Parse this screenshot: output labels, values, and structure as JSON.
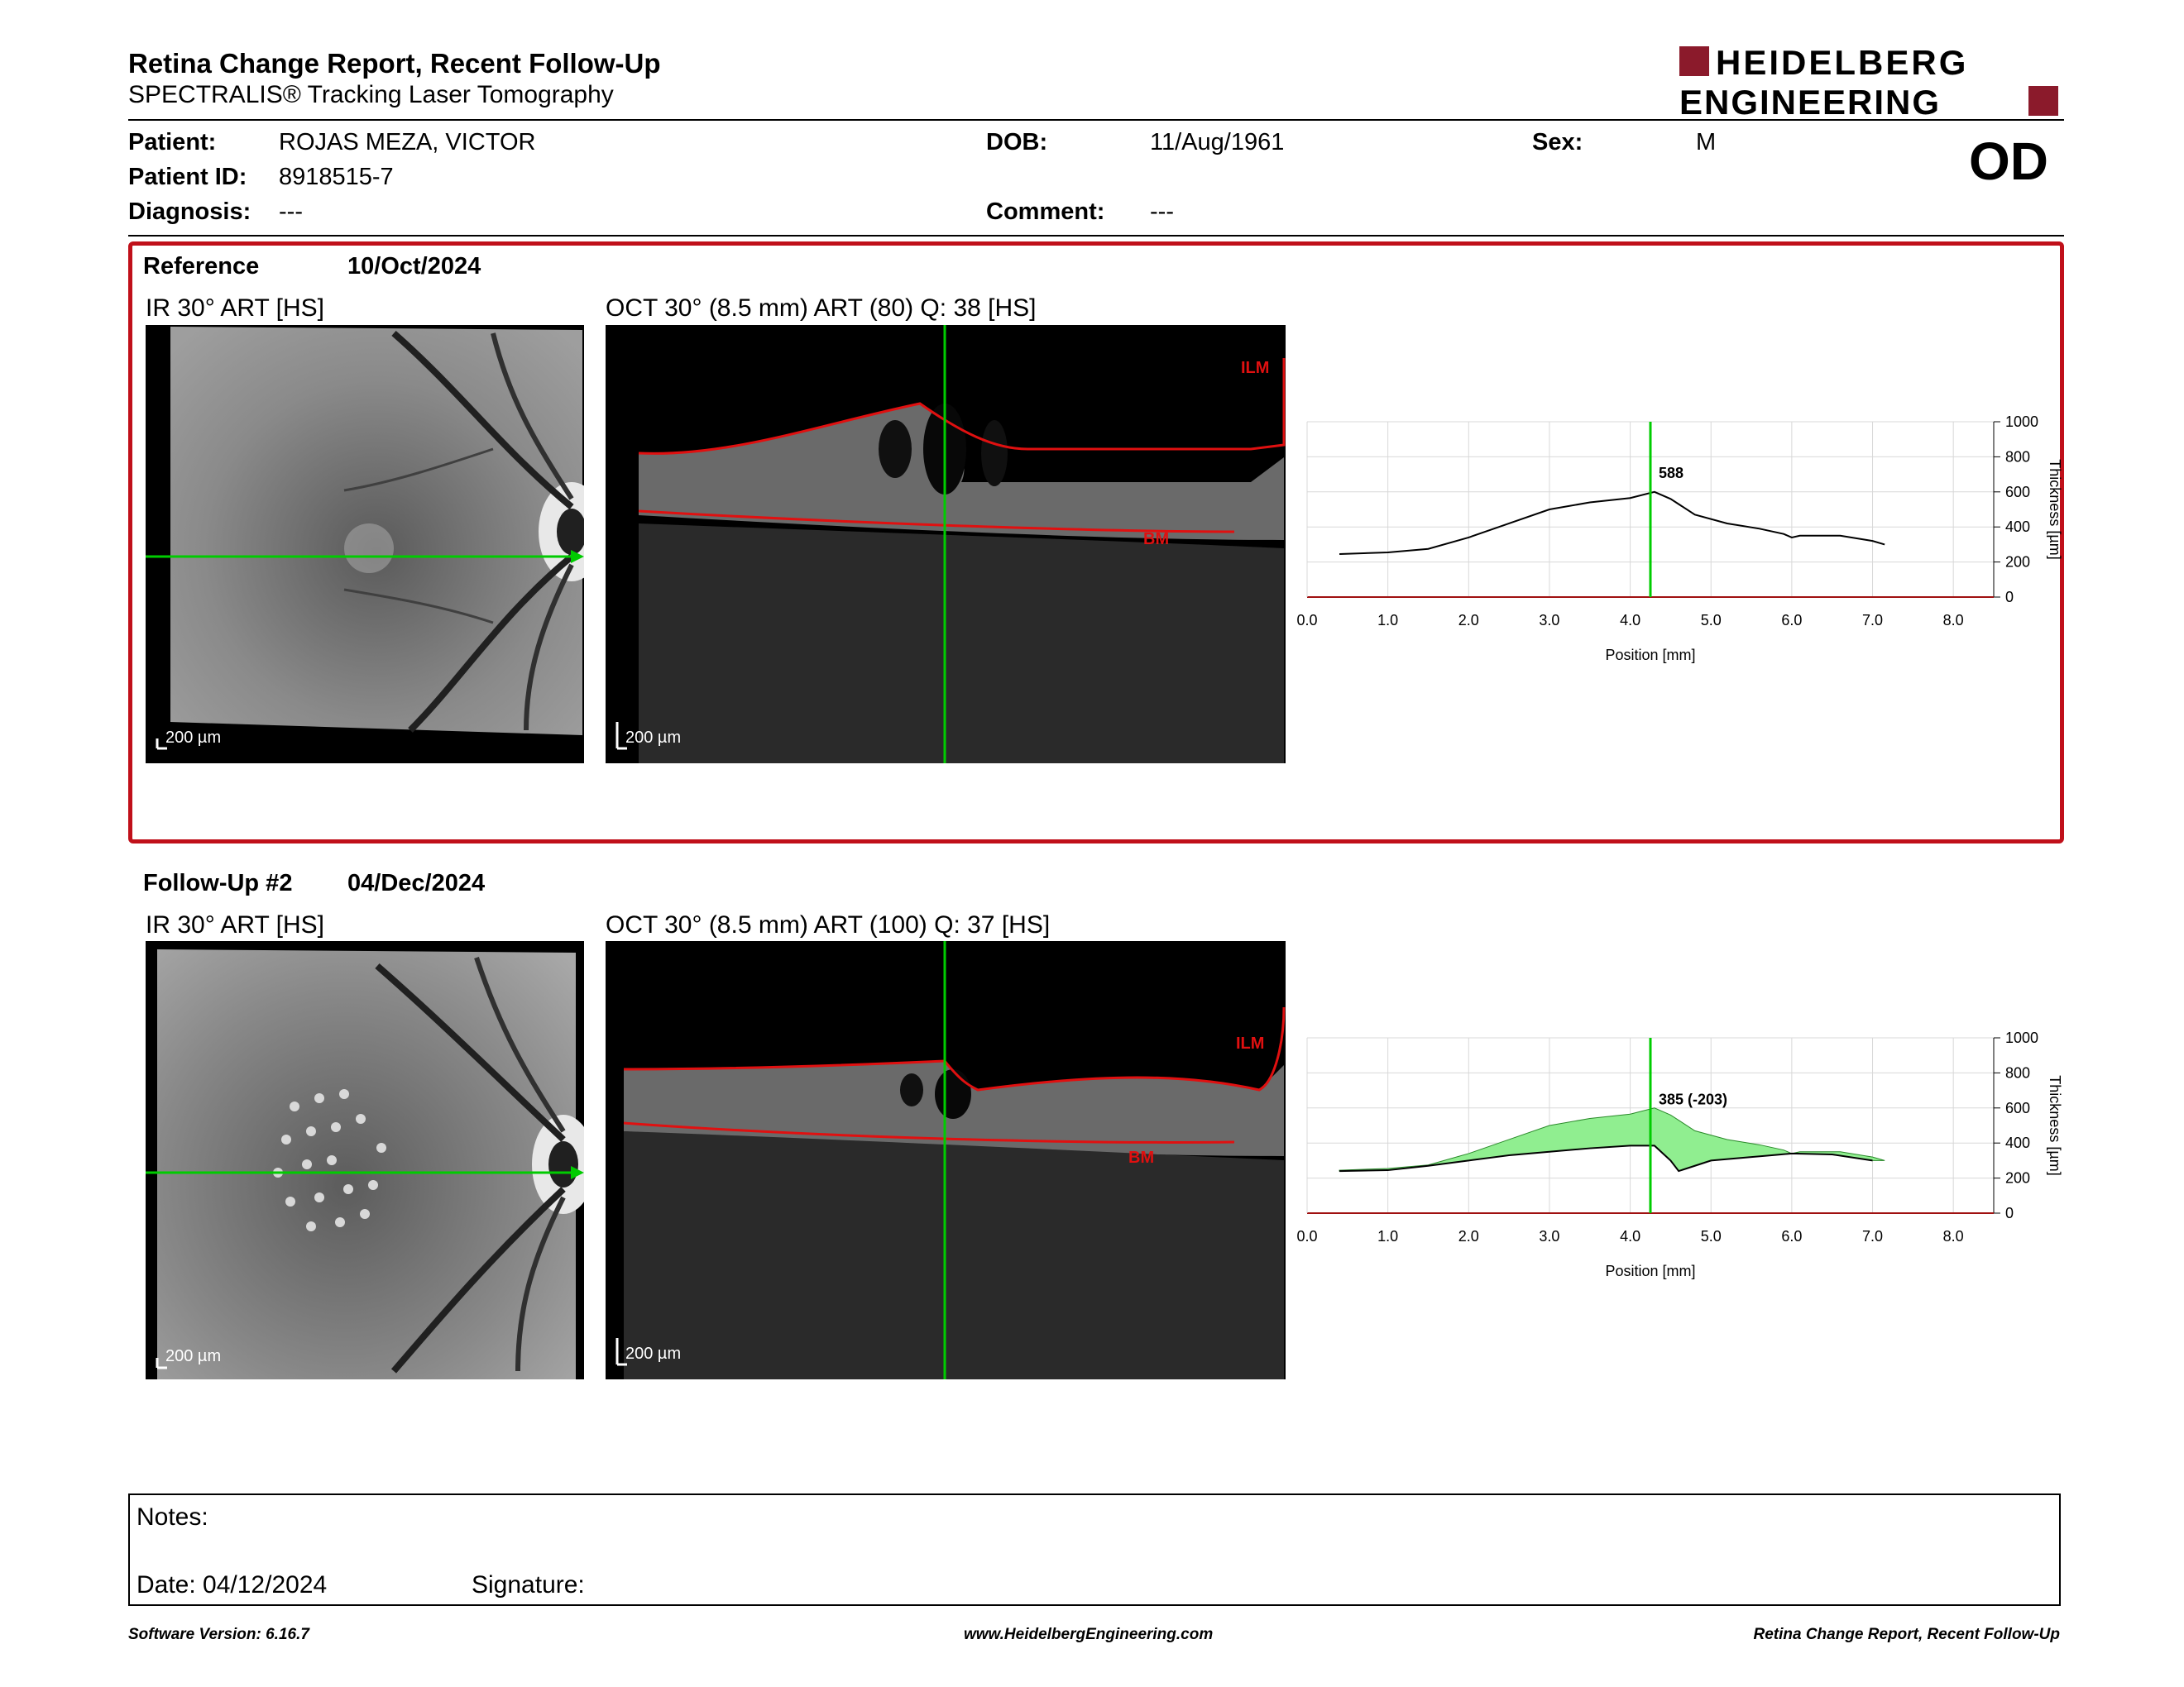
{
  "header": {
    "title": "Retina Change Report, Recent Follow-Up",
    "subtitle": "SPECTRALIS® Tracking Laser Tomography",
    "logo_line1": "HEIDELBERG",
    "logo_line2": "ENGINEERING",
    "brand_color": "#8b1a2b"
  },
  "patient": {
    "patient_label": "Patient:",
    "patient_value": "ROJAS MEZA, VICTOR",
    "id_label": "Patient ID:",
    "id_value": "8918515-7",
    "diagnosis_label": "Diagnosis:",
    "diagnosis_value": "---",
    "dob_label": "DOB:",
    "dob_value": "11/Aug/1961",
    "comment_label": "Comment:",
    "comment_value": "---",
    "sex_label": "Sex:",
    "sex_value": "M",
    "eye": "OD"
  },
  "reference": {
    "label": "Reference",
    "date": "10/Oct/2024",
    "ir_label": "IR 30° ART [HS]",
    "oct_label": "OCT 30° (8.5 mm) ART (80) Q: 38 [HS]",
    "scale_ir": "200 µm",
    "scale_oct": "200 µm",
    "ilm": "ILM",
    "bm": "BM",
    "border_color": "#c0101a"
  },
  "followup": {
    "label": "Follow-Up #2",
    "date": "04/Dec/2024",
    "ir_label": "IR 30° ART [HS]",
    "oct_label": "OCT 30° (8.5 mm) ART (100) Q: 37 [HS]",
    "scale_ir": "200 µm",
    "scale_oct": "200 µm",
    "ilm": "ILM",
    "bm": "BM"
  },
  "chart_data": [
    {
      "type": "line",
      "x_label": "Position [mm]",
      "y_label": "Thickness [µm]",
      "xlim": [
        0,
        8.5
      ],
      "ylim": [
        0,
        1000
      ],
      "x_ticks": [
        "0.0",
        "1.0",
        "2.0",
        "3.0",
        "4.0",
        "5.0",
        "6.0",
        "7.0",
        "8.0"
      ],
      "y_ticks": [
        "0",
        "200",
        "400",
        "600",
        "800",
        "1000"
      ],
      "cursor_x": 4.25,
      "cursor_label": "588",
      "series": [
        {
          "values": [
            [
              0.4,
              245
            ],
            [
              1.0,
              255
            ],
            [
              1.5,
              275
            ],
            [
              2.0,
              340
            ],
            [
              2.5,
              420
            ],
            [
              3.0,
              500
            ],
            [
              3.5,
              540
            ],
            [
              4.0,
              565
            ],
            [
              4.3,
              600
            ],
            [
              4.5,
              560
            ],
            [
              4.8,
              470
            ],
            [
              5.2,
              420
            ],
            [
              5.6,
              390
            ],
            [
              5.9,
              360
            ],
            [
              6.0,
              340
            ],
            [
              6.1,
              350
            ],
            [
              6.6,
              350
            ],
            [
              7.0,
              320
            ],
            [
              7.15,
              300
            ]
          ]
        }
      ],
      "colors": {
        "line": "#000000",
        "cursor": "#00cc00",
        "axis": "#a01010"
      }
    },
    {
      "type": "area",
      "x_label": "Position [mm]",
      "y_label": "Thickness [µm]",
      "xlim": [
        0,
        8.5
      ],
      "ylim": [
        0,
        1000
      ],
      "x_ticks": [
        "0.0",
        "1.0",
        "2.0",
        "3.0",
        "4.0",
        "5.0",
        "6.0",
        "7.0",
        "8.0"
      ],
      "y_ticks": [
        "0",
        "200",
        "400",
        "600",
        "800",
        "1000"
      ],
      "cursor_x": 4.25,
      "cursor_label": "385 (-203)",
      "series": [
        {
          "values": [
            [
              0.4,
              240
            ],
            [
              1.0,
              245
            ],
            [
              1.5,
              270
            ],
            [
              2.0,
              300
            ],
            [
              2.5,
              330
            ],
            [
              3.0,
              350
            ],
            [
              3.5,
              370
            ],
            [
              4.0,
              385
            ],
            [
              4.3,
              385
            ],
            [
              4.5,
              300
            ],
            [
              4.6,
              240
            ],
            [
              4.8,
              270
            ],
            [
              5.0,
              300
            ],
            [
              5.5,
              320
            ],
            [
              6.0,
              340
            ],
            [
              6.5,
              335
            ],
            [
              7.0,
              300
            ]
          ]
        },
        {
          "values": [
            [
              0.4,
              245
            ],
            [
              1.0,
              255
            ],
            [
              1.5,
              275
            ],
            [
              2.0,
              340
            ],
            [
              2.5,
              420
            ],
            [
              3.0,
              500
            ],
            [
              3.5,
              540
            ],
            [
              4.0,
              565
            ],
            [
              4.3,
              600
            ],
            [
              4.5,
              560
            ],
            [
              4.8,
              470
            ],
            [
              5.2,
              420
            ],
            [
              5.6,
              390
            ],
            [
              5.9,
              360
            ],
            [
              6.0,
              340
            ],
            [
              6.1,
              350
            ],
            [
              6.6,
              350
            ],
            [
              7.0,
              320
            ],
            [
              7.15,
              300
            ]
          ]
        }
      ],
      "colors": {
        "line": "#000000",
        "fill": "#90ee90",
        "cursor": "#00cc00",
        "axis": "#a01010"
      }
    }
  ],
  "notes": {
    "notes_label": "Notes:",
    "date_label": "Date: 04/12/2024",
    "signature_label": "Signature:"
  },
  "footer": {
    "version": "Software Version: 6.16.7",
    "website": "www.HeidelbergEngineering.com",
    "report_name": "Retina Change Report, Recent Follow-Up"
  }
}
